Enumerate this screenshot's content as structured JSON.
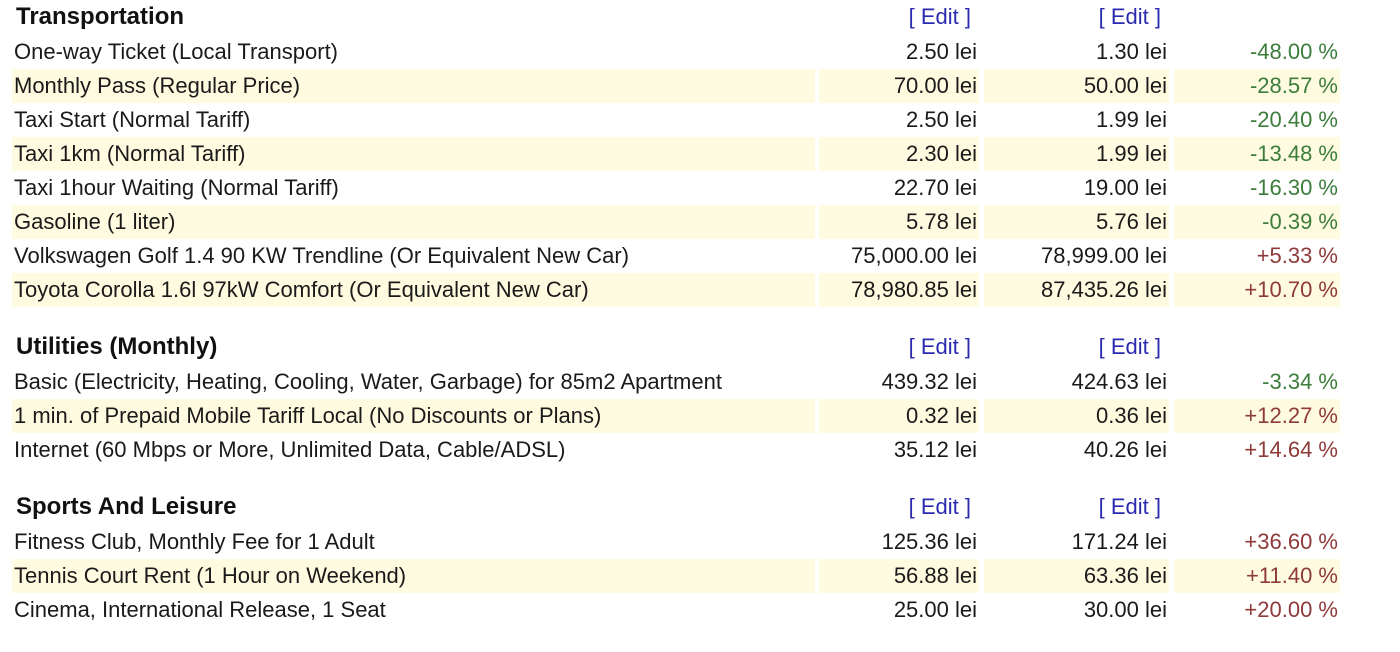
{
  "sections": [
    {
      "title": "Transportation",
      "edit_labels": [
        "[ Edit ]",
        "[ Edit ]"
      ],
      "rows": [
        [
          "One-way Ticket (Local Transport)",
          "2.50 lei",
          "1.30 lei",
          "-48.00 %"
        ],
        [
          "Monthly Pass (Regular Price)",
          "70.00 lei",
          "50.00 lei",
          "-28.57 %"
        ],
        [
          "Taxi Start (Normal Tariff)",
          "2.50 lei",
          "1.99 lei",
          "-20.40 %"
        ],
        [
          "Taxi 1km (Normal Tariff)",
          "2.30 lei",
          "1.99 lei",
          "-13.48 %"
        ],
        [
          "Taxi 1hour Waiting (Normal Tariff)",
          "22.70 lei",
          "19.00 lei",
          "-16.30 %"
        ],
        [
          "Gasoline (1 liter)",
          "5.78 lei",
          "5.76 lei",
          "-0.39 %"
        ],
        [
          "Volkswagen Golf 1.4 90 KW Trendline (Or Equivalent New Car)",
          "75,000.00 lei",
          "78,999.00 lei",
          "+5.33 %"
        ],
        [
          "Toyota Corolla 1.6l 97kW Comfort (Or Equivalent New Car)",
          "78,980.85 lei",
          "87,435.26 lei",
          "+10.70 %"
        ]
      ]
    },
    {
      "title": "Utilities (Monthly)",
      "edit_labels": [
        "[ Edit ]",
        "[ Edit ]"
      ],
      "rows": [
        [
          "Basic (Electricity, Heating, Cooling, Water, Garbage) for 85m2 Apartment",
          "439.32 lei",
          "424.63 lei",
          "-3.34 %"
        ],
        [
          "1 min. of Prepaid Mobile Tariff Local (No Discounts or Plans)",
          "0.32 lei",
          "0.36 lei",
          "+12.27 %"
        ],
        [
          "Internet (60 Mbps or More, Unlimited Data, Cable/ADSL)",
          "35.12 lei",
          "40.26 lei",
          "+14.64 %"
        ]
      ]
    },
    {
      "title": "Sports And Leisure",
      "edit_labels": [
        "[ Edit ]",
        "[ Edit ]"
      ],
      "rows": [
        [
          "Fitness Club, Monthly Fee for 1 Adult",
          "125.36 lei",
          "171.24 lei",
          "+36.60 %"
        ],
        [
          "Tennis Court Rent (1 Hour on Weekend)",
          "56.88 lei",
          "63.36 lei",
          "+11.40 %"
        ],
        [
          "Cinema, International Release, 1 Seat",
          "25.00 lei",
          "30.00 lei",
          "+20.00 %"
        ]
      ]
    }
  ]
}
